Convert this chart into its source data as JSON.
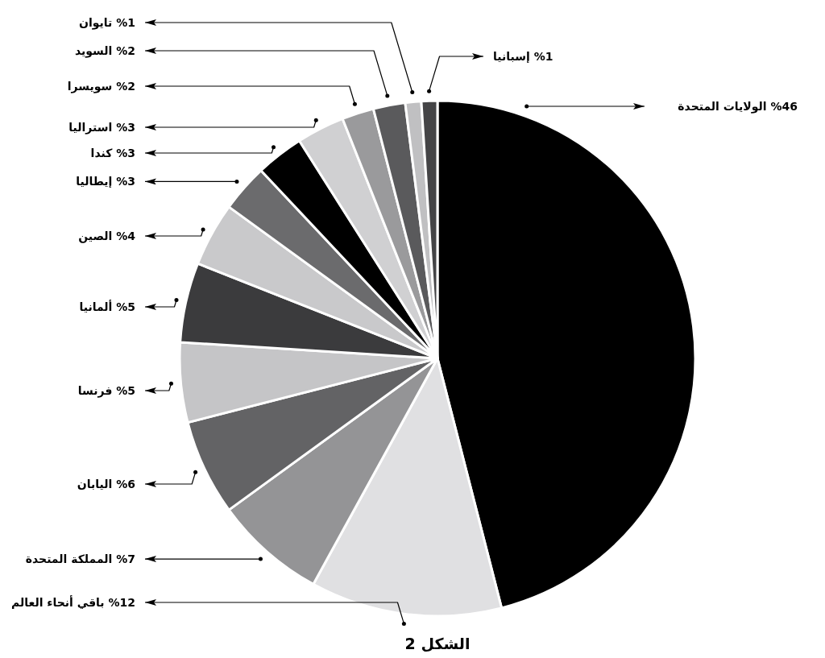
{
  "chart_data": {
    "type": "pie",
    "categories": [
      "الولايات المتحدة",
      "باقي أنحاء العالم",
      "المملكة المتحدة",
      "اليابان",
      "فرنسا",
      "ألمانيا",
      "الصين",
      "إيطاليا",
      "كندا",
      "استراليا",
      "سويسرا",
      "السويد",
      "تايوان",
      "إسبانيا"
    ],
    "values": [
      46,
      12,
      7,
      6,
      5,
      5,
      4,
      3,
      3,
      3,
      2,
      2,
      1,
      1
    ],
    "value_labels": [
      "%46",
      "%12",
      "%7",
      "%6",
      "%5",
      "%5",
      "%4",
      "%3",
      "%3",
      "%3",
      "%2",
      "%2",
      "%1",
      "%1"
    ],
    "colors": [
      "#000000",
      "#e0e0e2",
      "#949496",
      "#636365",
      "#c5c5c7",
      "#3b3b3d",
      "#c9c9cb",
      "#6b6b6d",
      "#000000",
      "#d0d0d2",
      "#9a9a9c",
      "#5a5a5c",
      "#c0c0c2",
      "#444446"
    ],
    "annotations": [
      "الشكل 2"
    ]
  }
}
